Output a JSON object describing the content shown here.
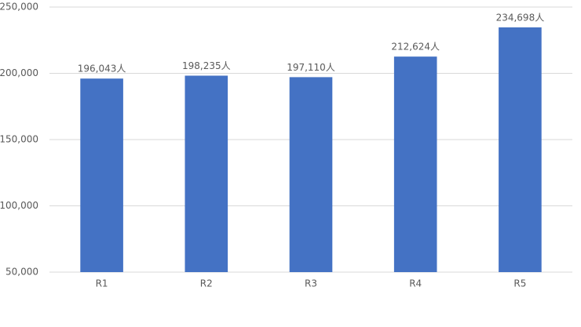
{
  "chart_data": {
    "type": "bar",
    "categories": [
      "R1",
      "R2",
      "R3",
      "R4",
      "R5"
    ],
    "values": [
      196043,
      198235,
      197110,
      212624,
      234698
    ],
    "value_labels": [
      "196,043人",
      "198,235人",
      "197,110人",
      "212,624人",
      "234,698人"
    ],
    "color": "#4472c4",
    "ylim": [
      50000,
      250000
    ],
    "yticks": [
      {
        "value": 50000,
        "label": "50,000"
      },
      {
        "value": 100000,
        "label": "100,000"
      },
      {
        "value": 150000,
        "label": "150,000"
      },
      {
        "value": 200000,
        "label": "200,000"
      },
      {
        "value": 250000,
        "label": "250,000"
      }
    ],
    "grid": true
  }
}
